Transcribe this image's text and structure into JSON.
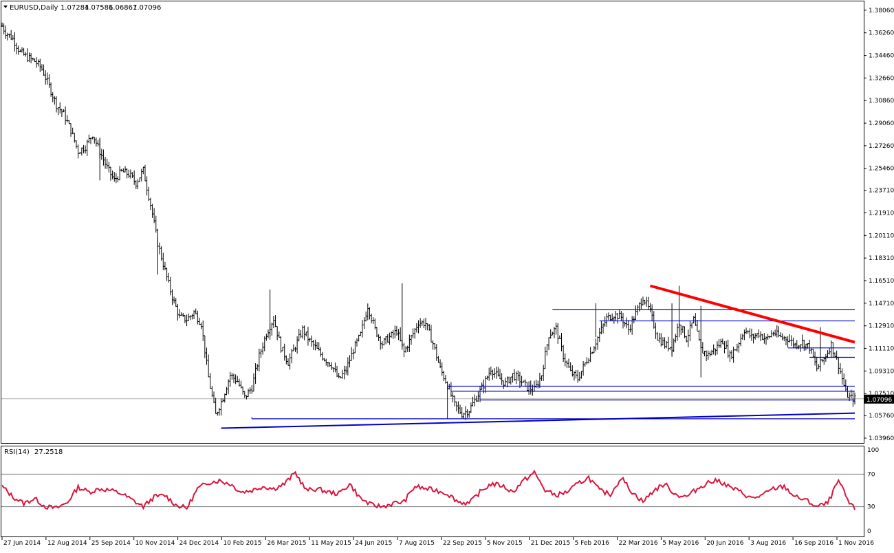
{
  "header": {
    "symbol": "EURUSD,Daily",
    "open": "1.07284",
    "high": "1.07586",
    "low": "1.06867",
    "close": "1.07096"
  },
  "rsi_header": {
    "name": "RSI(14)",
    "value": "27.2518"
  },
  "colors": {
    "bars": "#000000",
    "trend_red": "#ff0000",
    "lines_blue": "#0000cc",
    "rsi_line": "#dc143c",
    "current_price_bg": "#000000",
    "current_price_text": "#ffffff"
  },
  "chart_data": [
    {
      "type": "ohlc",
      "title": "EURUSD,Daily",
      "x_tick_labels": [
        "27 Jun 2014",
        "12 Aug 2014",
        "25 Sep 2014",
        "10 Nov 2014",
        "24 Dec 2014",
        "10 Feb 2015",
        "26 Mar 2015",
        "11 May 2015",
        "24 Jun 2015",
        "7 Aug 2015",
        "22 Sep 2015",
        "5 Nov 2015",
        "21 Dec 2015",
        "5 Feb 2016",
        "22 Mar 2016",
        "5 May 2016",
        "20 Jun 2016",
        "3 Aug 2016",
        "16 Sep 2016",
        "1 Nov 2016"
      ],
      "y_tick_labels": [
        "1.38060",
        "1.36260",
        "1.34460",
        "1.32660",
        "1.30860",
        "1.29060",
        "1.27260",
        "1.25460",
        "1.23710",
        "1.21910",
        "1.20110",
        "1.18310",
        "1.16510",
        "1.14710",
        "1.12910",
        "1.11110",
        "1.09310",
        "1.07510",
        "1.05760",
        "1.03960"
      ],
      "current_price": "1.07096",
      "ylim": [
        1.0352,
        1.3871
      ],
      "close_path": [
        [
          0,
          1.368
        ],
        [
          2,
          1.363
        ],
        [
          6,
          1.358
        ],
        [
          10,
          1.347
        ],
        [
          14,
          1.343
        ],
        [
          18,
          1.34
        ],
        [
          22,
          1.334
        ],
        [
          26,
          1.32
        ],
        [
          30,
          1.305
        ],
        [
          34,
          1.298
        ],
        [
          38,
          1.285
        ],
        [
          42,
          1.268
        ],
        [
          46,
          1.272
        ],
        [
          50,
          1.282
        ],
        [
          54,
          1.268
        ],
        [
          58,
          1.255
        ],
        [
          62,
          1.245
        ],
        [
          66,
          1.252
        ],
        [
          70,
          1.25
        ],
        [
          74,
          1.243
        ],
        [
          78,
          1.253
        ],
        [
          82,
          1.226
        ],
        [
          86,
          1.195
        ],
        [
          90,
          1.173
        ],
        [
          94,
          1.152
        ],
        [
          98,
          1.136
        ],
        [
          102,
          1.134
        ],
        [
          106,
          1.14
        ],
        [
          110,
          1.131
        ],
        [
          114,
          1.088
        ],
        [
          118,
          1.058
        ],
        [
          122,
          1.072
        ],
        [
          126,
          1.09
        ],
        [
          130,
          1.085
        ],
        [
          134,
          1.072
        ],
        [
          138,
          1.08
        ],
        [
          142,
          1.105
        ],
        [
          146,
          1.123
        ],
        [
          150,
          1.135
        ],
        [
          154,
          1.112
        ],
        [
          158,
          1.1
        ],
        [
          162,
          1.113
        ],
        [
          166,
          1.126
        ],
        [
          170,
          1.117
        ],
        [
          174,
          1.11
        ],
        [
          178,
          1.103
        ],
        [
          182,
          1.098
        ],
        [
          186,
          1.086
        ],
        [
          190,
          1.094
        ],
        [
          194,
          1.11
        ],
        [
          198,
          1.122
        ],
        [
          202,
          1.145
        ],
        [
          206,
          1.126
        ],
        [
          210,
          1.115
        ],
        [
          214,
          1.12
        ],
        [
          218,
          1.125
        ],
        [
          222,
          1.108
        ],
        [
          226,
          1.12
        ],
        [
          230,
          1.132
        ],
        [
          234,
          1.131
        ],
        [
          238,
          1.115
        ],
        [
          242,
          1.095
        ],
        [
          246,
          1.082
        ],
        [
          250,
          1.066
        ],
        [
          254,
          1.059
        ],
        [
          258,
          1.062
        ],
        [
          262,
          1.072
        ],
        [
          266,
          1.082
        ],
        [
          270,
          1.095
        ],
        [
          274,
          1.088
        ],
        [
          278,
          1.083
        ],
        [
          282,
          1.09
        ],
        [
          286,
          1.086
        ],
        [
          290,
          1.08
        ],
        [
          294,
          1.078
        ],
        [
          298,
          1.09
        ],
        [
          302,
          1.122
        ],
        [
          306,
          1.127
        ],
        [
          310,
          1.105
        ],
        [
          314,
          1.092
        ],
        [
          318,
          1.087
        ],
        [
          322,
          1.099
        ],
        [
          326,
          1.11
        ],
        [
          330,
          1.123
        ],
        [
          334,
          1.135
        ],
        [
          338,
          1.138
        ],
        [
          342,
          1.136
        ],
        [
          346,
          1.126
        ],
        [
          350,
          1.139
        ],
        [
          354,
          1.152
        ],
        [
          358,
          1.14
        ],
        [
          362,
          1.12
        ],
        [
          366,
          1.114
        ],
        [
          370,
          1.112
        ],
        [
          374,
          1.132
        ],
        [
          378,
          1.119
        ],
        [
          382,
          1.134
        ],
        [
          386,
          1.11
        ],
        [
          390,
          1.106
        ],
        [
          394,
          1.111
        ],
        [
          398,
          1.117
        ],
        [
          402,
          1.105
        ],
        [
          406,
          1.113
        ],
        [
          410,
          1.126
        ],
        [
          414,
          1.12
        ],
        [
          418,
          1.123
        ],
        [
          422,
          1.118
        ],
        [
          426,
          1.124
        ],
        [
          430,
          1.12
        ],
        [
          434,
          1.119
        ],
        [
          438,
          1.114
        ],
        [
          442,
          1.116
        ],
        [
          446,
          1.112
        ],
        [
          450,
          1.095
        ],
        [
          454,
          1.103
        ],
        [
          458,
          1.114
        ],
        [
          462,
          1.098
        ],
        [
          466,
          1.076
        ],
        [
          468,
          1.072
        ],
        [
          471,
          1.071
        ]
      ],
      "ranges": [
        {
          "from": [
            148,
            1.118
          ],
          "to": [
            150,
            1.158
          ]
        },
        {
          "from": [
            221,
            1.11
          ],
          "to": [
            223,
            1.163
          ]
        },
        {
          "from": [
            328,
            1.12
          ],
          "to": [
            330,
            1.147
          ]
        },
        {
          "from": [
            370,
            1.106
          ],
          "to": [
            371,
            1.147
          ]
        },
        {
          "from": [
            374,
            1.12
          ],
          "to": [
            375,
            1.161
          ]
        },
        {
          "from": [
            386,
            1.088
          ],
          "to": [
            387,
            1.145
          ]
        },
        {
          "from": [
            452,
            1.094
          ],
          "to": [
            453,
            1.128
          ]
        },
        {
          "from": [
            54,
            1.245
          ],
          "to": [
            55,
            1.279
          ]
        },
        {
          "from": [
            86,
            1.17
          ],
          "to": [
            87,
            1.2
          ]
        }
      ]
    },
    {
      "type": "line",
      "title": "RSI(14)",
      "ylim": [
        0,
        100
      ],
      "y_tick_labels": [
        "100",
        "70",
        "30",
        "0"
      ],
      "levels": [
        70,
        30
      ],
      "current_value": "27.2518",
      "x": [
        0,
        6,
        12,
        18,
        24,
        30,
        36,
        42,
        48,
        54,
        60,
        66,
        72,
        78,
        84,
        90,
        96,
        102,
        108,
        114,
        120,
        126,
        132,
        138,
        144,
        150,
        156,
        162,
        168,
        174,
        180,
        186,
        192,
        198,
        204,
        210,
        216,
        222,
        228,
        234,
        240,
        246,
        252,
        258,
        264,
        270,
        276,
        282,
        288,
        294,
        300,
        306,
        312,
        318,
        324,
        330,
        336,
        342,
        348,
        354,
        360,
        366,
        372,
        378,
        384,
        390,
        396,
        402,
        408,
        414,
        420,
        426,
        432,
        438,
        444,
        450,
        456,
        462,
        468,
        471
      ],
      "values": [
        55,
        42,
        34,
        40,
        30,
        28,
        35,
        54,
        48,
        52,
        50,
        46,
        38,
        30,
        42,
        44,
        32,
        28,
        52,
        60,
        62,
        58,
        48,
        50,
        55,
        52,
        58,
        72,
        50,
        52,
        48,
        46,
        58,
        40,
        32,
        30,
        34,
        36,
        55,
        52,
        50,
        46,
        36,
        34,
        48,
        58,
        56,
        48,
        62,
        72,
        50,
        44,
        48,
        58,
        66,
        50,
        45,
        66,
        48,
        36,
        50,
        58,
        45,
        42,
        52,
        60,
        62,
        54,
        48,
        40,
        44,
        52,
        55,
        42,
        38,
        30,
        34,
        62,
        34,
        27
      ]
    }
  ]
}
